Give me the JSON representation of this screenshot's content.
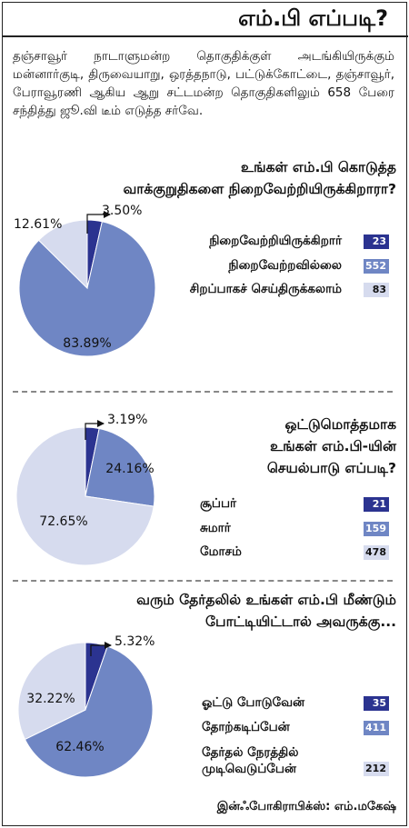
{
  "title": "எம்.பி எப்படி?",
  "intro": "தஞ்சாவூர் நாடாளுமன்ற தொகுதிக்குள் அடங்கியிருக்கும் மன்னார்குடி, திருவையாறு, ஒரத்தநாடு, பட்டுக்கோட்டை, தஞ்சாவூர், பேராவூரணி ஆகிய ஆறு சட்டமன்ற தொகுதிகளிலும் 658 பேரை சந்தித்து ஜூ.வி டீம் எடுத்த சர்வே.",
  "credit": "இன்ஃபோகிராபிக்ஸ்: எம்.மகேஷ்",
  "colors": {
    "dark": "#2b3390",
    "medium": "#6f86c4",
    "light": "#d6dbee"
  },
  "chart_data": [
    {
      "type": "pie",
      "title_lines": [
        "உங்கள் எம்.பி கொடுத்த",
        "வாக்குறுதிகளை நிறைவேற்றியிருக்கிறாரா?"
      ],
      "slices": [
        {
          "label": "நிறைவேற்றியிருக்கிறார்",
          "count": "23",
          "percent": 3.5,
          "percent_label": "3.50%",
          "color": "#2b3390"
        },
        {
          "label": "நிறைவேற்றவில்லை",
          "count": "552",
          "percent": 83.89,
          "percent_label": "83.89%",
          "color": "#6f86c4"
        },
        {
          "label": "சிறப்பாகச் செய்திருக்கலாம்",
          "count": "83",
          "percent": 12.61,
          "percent_label": "12.61%",
          "color": "#d6dbee"
        }
      ]
    },
    {
      "type": "pie",
      "title_lines": [
        "ஒட்டுமொத்தமாக",
        "உங்கள் எம்.பி-யின்",
        "செயல்பாடு எப்படி?"
      ],
      "slices": [
        {
          "label": "சூப்பர்",
          "count": "21",
          "percent": 3.19,
          "percent_label": "3.19%",
          "color": "#2b3390"
        },
        {
          "label": "சுமார்",
          "count": "159",
          "percent": 24.16,
          "percent_label": "24.16%",
          "color": "#6f86c4"
        },
        {
          "label": "மோசம்",
          "count": "478",
          "percent": 72.65,
          "percent_label": "72.65%",
          "color": "#d6dbee"
        }
      ]
    },
    {
      "type": "pie",
      "title_lines": [
        "வரும் தேர்தலில் உங்கள் எம்.பி மீண்டும்",
        "போட்டியிட்டால் அவருக்கு..."
      ],
      "slices": [
        {
          "label": "ஓட்டு போடுவேன்",
          "count": "35",
          "percent": 5.32,
          "percent_label": "5.32%",
          "color": "#2b3390"
        },
        {
          "label": "தோற்கடிப்பேன்",
          "count": "411",
          "percent": 62.46,
          "percent_label": "62.46%",
          "color": "#6f86c4"
        },
        {
          "label_lines": [
            "தேர்தல் நேரத்தில்",
            "முடிவெடுப்பேன்"
          ],
          "count": "212",
          "percent": 32.22,
          "percent_label": "32.22%",
          "color": "#d6dbee"
        }
      ]
    }
  ]
}
